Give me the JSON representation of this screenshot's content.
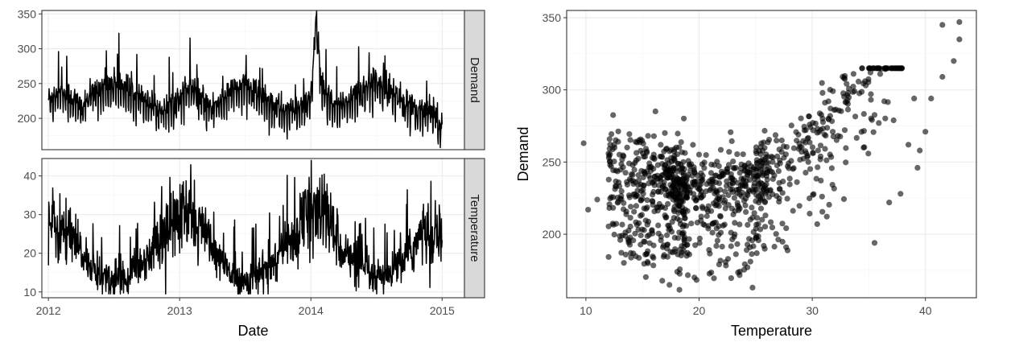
{
  "chart_data": [
    {
      "type": "line",
      "facets": [
        "Demand",
        "Temperature"
      ],
      "xlabel": "Date",
      "ylabel": "",
      "xlim": [
        2011.95,
        2015.17
      ],
      "x_ticks": [
        2012,
        2013,
        2014,
        2015
      ],
      "x_tick_labels": [
        "2012",
        "2013",
        "2014",
        "2015"
      ],
      "panels": [
        {
          "facet": "Demand",
          "ylim": [
            155,
            355
          ],
          "y_ticks": [
            200,
            250,
            300,
            350
          ],
          "y_tick_labels": [
            "200",
            "250",
            "300",
            "350"
          ],
          "series": [
            {
              "x": [
                2012.0,
                2012.08,
                2012.17,
                2012.25,
                2012.33,
                2012.42,
                2012.5,
                2012.58,
                2012.67,
                2012.75,
                2012.83,
                2012.92,
                2013.0,
                2013.08,
                2013.17,
                2013.25,
                2013.33,
                2013.42,
                2013.5,
                2013.58,
                2013.67,
                2013.75,
                2013.83,
                2013.92,
                2014.0,
                2014.04,
                2014.08,
                2014.17,
                2014.25,
                2014.33,
                2014.42,
                2014.5,
                2014.58,
                2014.67,
                2014.75,
                2014.83,
                2014.92,
                2015.0
              ],
              "y": [
                225,
                240,
                230,
                215,
                235,
                245,
                250,
                245,
                230,
                220,
                215,
                215,
                230,
                245,
                225,
                215,
                230,
                240,
                245,
                240,
                225,
                215,
                210,
                215,
                225,
                345,
                245,
                215,
                220,
                235,
                245,
                252,
                245,
                230,
                215,
                212,
                215,
                190
              ]
            }
          ]
        },
        {
          "facet": "Temperature",
          "ylim": [
            8.5,
            44.5
          ],
          "y_ticks": [
            10,
            20,
            30,
            40
          ],
          "y_tick_labels": [
            "10",
            "20",
            "30",
            "40"
          ],
          "series": [
            {
              "x": [
                2012.0,
                2012.08,
                2012.17,
                2012.25,
                2012.33,
                2012.42,
                2012.5,
                2012.58,
                2012.67,
                2012.75,
                2012.83,
                2012.92,
                2013.0,
                2013.08,
                2013.17,
                2013.25,
                2013.33,
                2013.42,
                2013.5,
                2013.58,
                2013.67,
                2013.75,
                2013.83,
                2013.92,
                2014.0,
                2014.08,
                2014.17,
                2014.25,
                2014.33,
                2014.42,
                2014.5,
                2014.58,
                2014.67,
                2014.75,
                2014.83,
                2014.92,
                2015.0
              ],
              "y": [
                28,
                26,
                24,
                20,
                16,
                14,
                13,
                14,
                16,
                19,
                23,
                27,
                29,
                30,
                26,
                21,
                17,
                14,
                13,
                14,
                16,
                19,
                23,
                27,
                30,
                31,
                26,
                21,
                17,
                15,
                13,
                14,
                17,
                20,
                24,
                27,
                25
              ]
            }
          ]
        }
      ]
    },
    {
      "type": "scatter",
      "xlabel": "Temperature",
      "ylabel": "Demand",
      "xlim": [
        8.3,
        44.5
      ],
      "ylim": [
        156,
        355
      ],
      "x_ticks": [
        10,
        20,
        30,
        40
      ],
      "x_tick_labels": [
        "10",
        "20",
        "30",
        "40"
      ],
      "y_ticks": [
        200,
        250,
        300,
        350
      ],
      "y_tick_labels": [
        "200",
        "250",
        "300",
        "350"
      ],
      "point_color": "#000000",
      "point_opacity": 0.6
    }
  ]
}
